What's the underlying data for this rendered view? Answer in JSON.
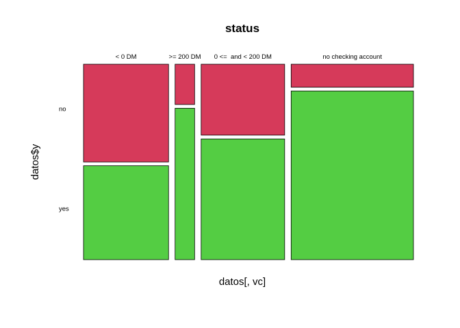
{
  "chart_data": {
    "type": "mosaic",
    "title": "status",
    "xlabel": "datos[, vc]",
    "ylabel": "datos$y",
    "x_categories": [
      "< 0 DM",
      ">= 200 DM",
      "0 <=  and < 200 DM",
      "no checking account"
    ],
    "x_proportions": [
      0.274,
      0.063,
      0.269,
      0.394
    ],
    "y_levels": [
      "no",
      "yes"
    ],
    "y_proportions_by_category": [
      {
        "category": "< 0 DM",
        "no": 0.51,
        "yes": 0.49
      },
      {
        "category": ">= 200 DM",
        "no": 0.21,
        "yes": 0.79
      },
      {
        "category": "0 <=  and < 200 DM",
        "no": 0.37,
        "yes": 0.63
      },
      {
        "category": "no checking account",
        "no": 0.12,
        "yes": 0.88
      }
    ],
    "colors": {
      "no": "#D63A5A",
      "yes": "#54CD43"
    }
  }
}
